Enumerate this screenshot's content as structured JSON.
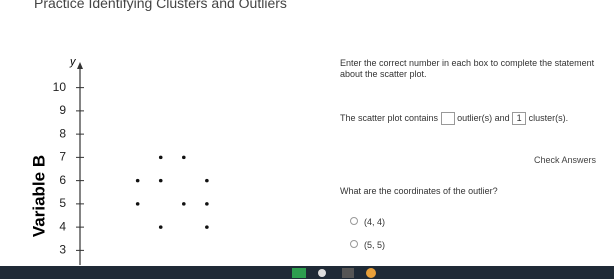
{
  "header": {
    "title": "Practice Identifying Clusters and Outliers"
  },
  "chart_data": {
    "type": "scatter",
    "y_label": "y",
    "y_axis_title": "Variable B",
    "xlim": [
      0.5,
      8
    ],
    "ylim": [
      2.5,
      10.5
    ],
    "yticks": [
      3,
      4,
      5,
      6,
      7,
      8,
      9,
      10
    ],
    "series": [
      {
        "color": "#111111",
        "x": [
          4,
          5,
          3,
          4,
          6,
          3,
          5,
          6,
          4,
          6
        ],
        "values": [
          7,
          7,
          6,
          6,
          6,
          5,
          5,
          5,
          4,
          4
        ]
      }
    ]
  },
  "question": {
    "instruction": "Enter the correct number in each box to complete the statement about the scatter plot.",
    "statement_start": "The scatter plot contains",
    "statement_mid": "outlier(s) and",
    "box_value": "1",
    "statement_end": "cluster(s).",
    "check_button": "Check Answers",
    "coordinates_question": "What are the coordinates of the outlier?",
    "options": [
      "(4, 4)",
      "(5, 5)"
    ]
  }
}
